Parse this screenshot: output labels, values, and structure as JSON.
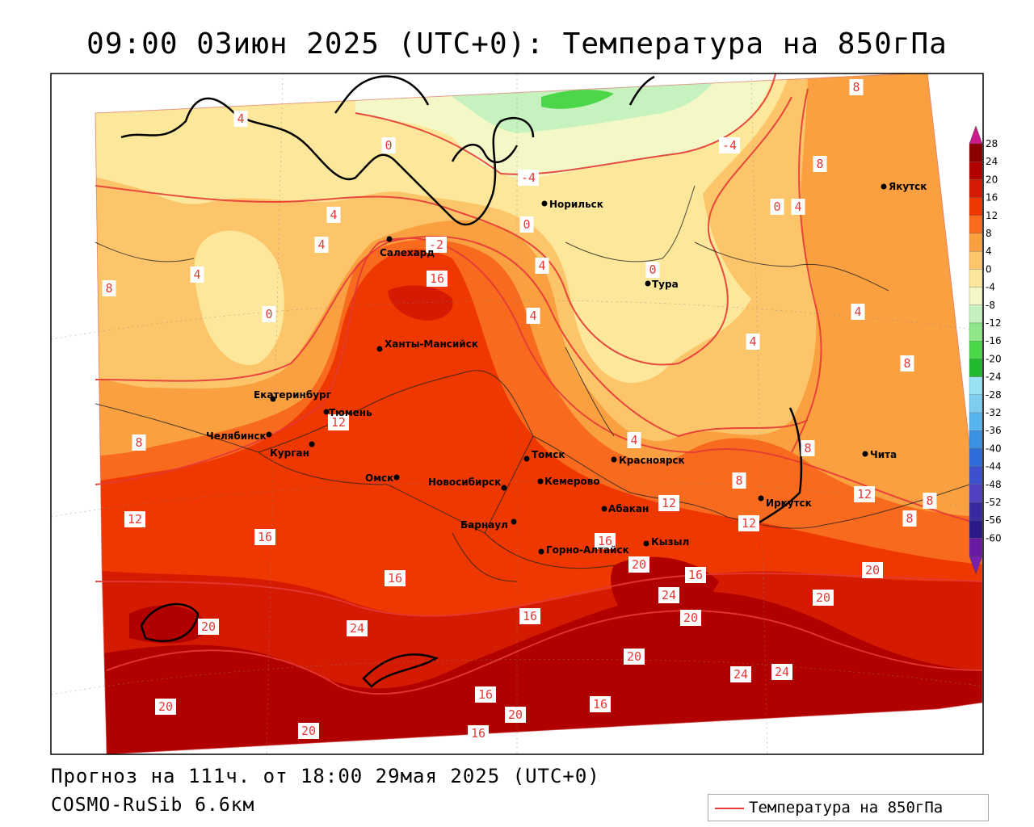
{
  "title": "09:00 03июн 2025 (UTC+0): Температура на 850гПа",
  "forecast_text": "Прогноз на 111ч. от 18:00 29мая 2025 (UTC+0)",
  "model_text": "COSMO-RuSib 6.6км",
  "legend": {
    "label": "Температура на 850гПа",
    "color": "#e53935"
  },
  "colorbar": {
    "labels": [
      "28",
      "24",
      "20",
      "16",
      "12",
      "8",
      "4",
      "0",
      "-4",
      "-8",
      "-12",
      "-16",
      "-20",
      "-24",
      "-28",
      "-32",
      "-36",
      "-40",
      "-44",
      "-48",
      "-52",
      "-56",
      "-60"
    ],
    "colors": [
      "#8b0000",
      "#b00000",
      "#d41a00",
      "#ee3800",
      "#f86a1e",
      "#fba040",
      "#fcc56a",
      "#fde79a",
      "#f4f8c6",
      "#c6f2c0",
      "#8ee88a",
      "#4cd64a",
      "#22b830",
      "#98e2f4",
      "#7ccdf0",
      "#58b4ec",
      "#3c90e2",
      "#2e6cd8",
      "#3c50cc",
      "#5040c0",
      "#3a2aa0",
      "#2a1a88",
      "#6a1aa0"
    ]
  },
  "cities": [
    {
      "name": "Салехард"
    },
    {
      "name": "Норильск"
    },
    {
      "name": "Якутск"
    },
    {
      "name": "Тура"
    },
    {
      "name": "Ханты-Мансийск"
    },
    {
      "name": "Екатеринбург"
    },
    {
      "name": "Тюмень"
    },
    {
      "name": "Челябинск"
    },
    {
      "name": "Курган"
    },
    {
      "name": "Омск"
    },
    {
      "name": "Новосибирск"
    },
    {
      "name": "Томск"
    },
    {
      "name": "Кемерово"
    },
    {
      "name": "Красноярск"
    },
    {
      "name": "Барнаул"
    },
    {
      "name": "Абакан"
    },
    {
      "name": "Горно-Алтайск"
    },
    {
      "name": "Кызыл"
    },
    {
      "name": "Иркутск"
    },
    {
      "name": "Чита"
    }
  ],
  "isotherm_labels": [
    "4",
    "0",
    "-4",
    "-4",
    "0",
    "4",
    "8",
    "4",
    "4",
    "4",
    "0",
    "4",
    "8",
    "0",
    "-2",
    "16",
    "8",
    "4",
    "0",
    "4",
    "8",
    "4",
    "12",
    "8",
    "4",
    "8",
    "8",
    "12",
    "12",
    "12",
    "8",
    "12",
    "8",
    "16",
    "16",
    "16",
    "16",
    "20",
    "16",
    "20",
    "20",
    "24",
    "20",
    "20",
    "20",
    "20",
    "16",
    "24",
    "24",
    "24",
    "20",
    "20",
    "16",
    "16"
  ]
}
